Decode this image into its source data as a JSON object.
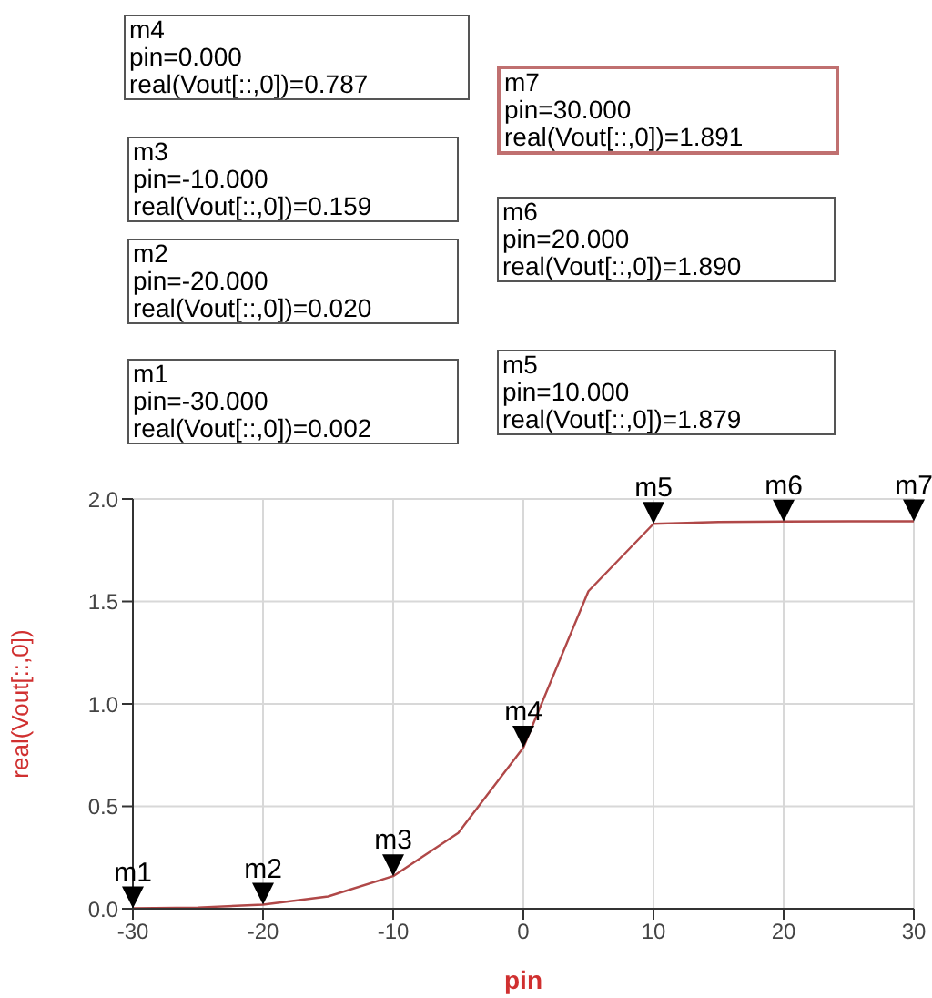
{
  "chart_data": {
    "type": "line",
    "xlabel": "pin",
    "ylabel": "real(Vout[::,0])",
    "x": [
      -30,
      -25,
      -20,
      -15,
      -10,
      -5,
      0,
      5,
      10,
      15,
      20,
      25,
      30
    ],
    "series": [
      {
        "color": "#b04848",
        "values": [
          0.002,
          0.006,
          0.02,
          0.06,
          0.159,
          0.37,
          0.787,
          1.55,
          1.879,
          1.888,
          1.89,
          1.891,
          1.891
        ]
      }
    ],
    "xlim": [
      -30,
      30
    ],
    "xticks": [
      -30,
      -20,
      -10,
      0,
      10,
      20,
      30
    ],
    "ylim": [
      0,
      2
    ],
    "yticks": [
      {
        "value": 0,
        "label": "0.0"
      },
      {
        "value": 0.5,
        "label": "0.5"
      },
      {
        "value": 1,
        "label": "1.0"
      },
      {
        "value": 1.5,
        "label": "1.5"
      },
      {
        "value": 2,
        "label": "2.0"
      }
    ],
    "grid": true,
    "marker": "none",
    "line_style": "solid",
    "annotations": [
      "m4\npin=0.000\nreal(Vout[::,0])=0.787",
      "m3\npin=-10.000\nreal(Vout[::,0])=0.159",
      "m2\npin=-20.000\nreal(Vout[::,0])=0.020",
      "m1\npin=-30.000\nreal(Vout[::,0])=0.002",
      "m7\npin=30.000\nreal(Vout[::,0])=1.891",
      "m6\npin=20.000\nreal(Vout[::,0])=1.890",
      "m5\npin=10.000\nreal(Vout[::,0])=1.879",
      {
        "text": "m1",
        "x": -30,
        "y": 0.002
      },
      {
        "text": "m2",
        "x": -20,
        "y": 0.02
      },
      {
        "text": "m3",
        "x": -10,
        "y": 0.159
      },
      {
        "text": "m4",
        "x": 0,
        "y": 0.787
      },
      {
        "text": "m5",
        "x": 10,
        "y": 1.879
      },
      {
        "text": "m6",
        "x": 20,
        "y": 1.89
      },
      {
        "text": "m7",
        "x": 30,
        "y": 1.891
      }
    ]
  }
}
